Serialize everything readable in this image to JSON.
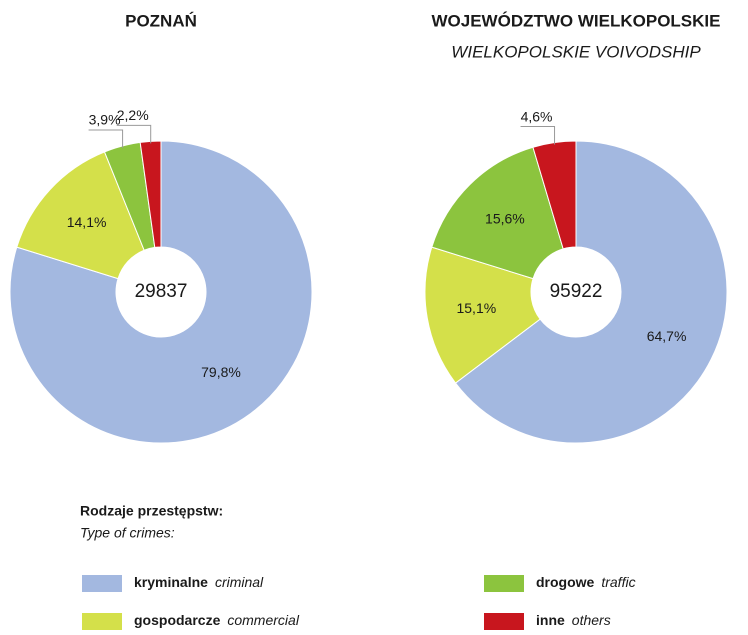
{
  "chart_data": [
    {
      "type": "pie",
      "title": "POZNAŃ",
      "total": 29837,
      "values": [
        79.8,
        14.1,
        3.9,
        2.2
      ],
      "value_labels": [
        "79,8%",
        "14,1%",
        "3,9%",
        "2,2%"
      ],
      "colors": [
        "#a3b8e0",
        "#d4e04a",
        "#8cc43e",
        "#c8161e"
      ]
    },
    {
      "type": "pie",
      "title": "WOJEWÓDZTWO WIELKOPOLSKIE",
      "subtitle": "WIELKOPOLSKIE VOIVODSHIP",
      "total": 95922,
      "values": [
        64.7,
        15.1,
        15.6,
        4.6
      ],
      "value_labels": [
        "64,7%",
        "15,1%",
        "15,6%",
        "4,6%"
      ],
      "colors": [
        "#a3b8e0",
        "#d4e04a",
        "#8cc43e",
        "#c8161e"
      ]
    }
  ],
  "legend": {
    "title": "Rodzaje przestępstw:",
    "subtitle": "Type of crimes:",
    "items": [
      {
        "name": "kryminalne",
        "translation": "criminal",
        "color": "#a3b8e0"
      },
      {
        "name": "gospodarcze",
        "translation": "commercial",
        "color": "#d4e04a"
      },
      {
        "name": "drogowe",
        "translation": "traffic",
        "color": "#8cc43e"
      },
      {
        "name": "inne",
        "translation": "others",
        "color": "#c8161e"
      }
    ]
  }
}
